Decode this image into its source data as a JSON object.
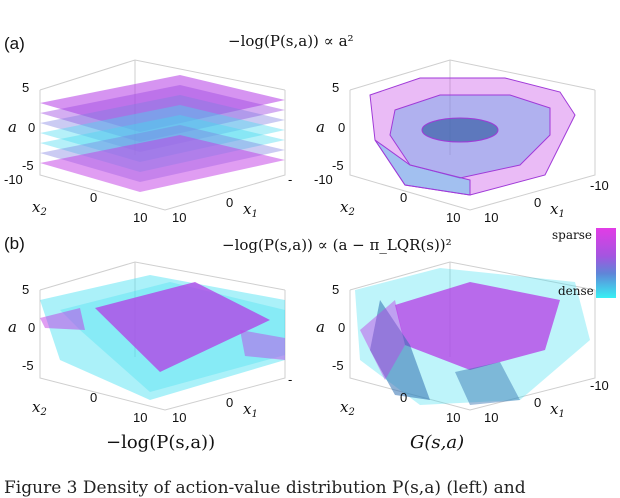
{
  "labels": {
    "panel_a": "(a)",
    "panel_b": "(b)"
  },
  "formulas": {
    "a": "−log(P(s,a)) ∝ a²",
    "b": "−log(P(s,a)) ∝ (a − π_LQR(s))²"
  },
  "axis": {
    "a_var": "a",
    "x1_base": "x",
    "x1_sub": "1",
    "x2_base": "x",
    "x2_sub": "2",
    "tick_5": "5",
    "tick_0": "0",
    "tick_m5": "-5",
    "tick_10": "10",
    "tick_m10": "-10",
    "tick_m10_trunc": "-",
    "tick_m5_trunc": "-5"
  },
  "colorbar": {
    "top": "sparse",
    "bottom": "dense"
  },
  "subtitles": {
    "left": "−log(P(s,a))",
    "right": "G(s,a)"
  },
  "caption_fragment": "Figure 3  Density  of action-value distribution  P(s,a)  (left)  and",
  "colors": {
    "magenta": "#c23ce6",
    "cyan": "#38f0f4",
    "purple": "#8a3fd6"
  }
}
